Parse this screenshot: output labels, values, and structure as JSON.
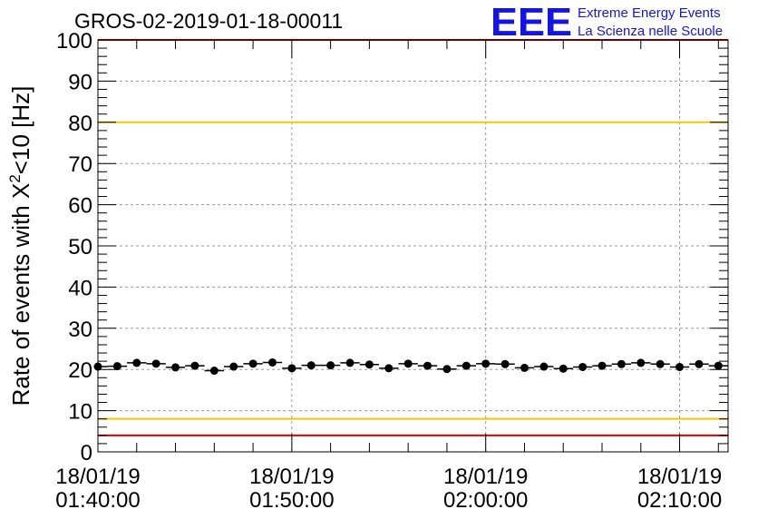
{
  "chart_data": {
    "type": "scatter",
    "title": "GROS-02-2019-01-18-00011",
    "ylabel_main": "Rate of events with X",
    "ylabel_sup": "2",
    "ylabel_tail": "<10 [Hz]",
    "ylim": [
      0,
      100
    ],
    "y_ticks": [
      "0",
      "10",
      "20",
      "30",
      "40",
      "50",
      "60",
      "70",
      "80",
      "90",
      "100"
    ],
    "x_tick_labels": [
      {
        "date": "18/01/19",
        "time": "01:40:00"
      },
      {
        "date": "18/01/19",
        "time": "01:50:00"
      },
      {
        "date": "18/01/19",
        "time": "02:00:00"
      },
      {
        "date": "18/01/19",
        "time": "02:10:00"
      }
    ],
    "grid": true,
    "x_start": "01:40:00",
    "x_end": "02:12:30",
    "points": [
      {
        "t": "01:40:00",
        "y": 20.7
      },
      {
        "t": "01:41:00",
        "y": 20.8
      },
      {
        "t": "01:42:00",
        "y": 21.6
      },
      {
        "t": "01:43:00",
        "y": 21.4
      },
      {
        "t": "01:44:00",
        "y": 20.5
      },
      {
        "t": "01:45:00",
        "y": 20.9
      },
      {
        "t": "01:46:00",
        "y": 19.7
      },
      {
        "t": "01:47:00",
        "y": 20.7
      },
      {
        "t": "01:48:00",
        "y": 21.4
      },
      {
        "t": "01:49:00",
        "y": 21.7
      },
      {
        "t": "01:50:00",
        "y": 20.3
      },
      {
        "t": "01:51:00",
        "y": 21.0
      },
      {
        "t": "01:52:00",
        "y": 21.0
      },
      {
        "t": "01:53:00",
        "y": 21.6
      },
      {
        "t": "01:54:00",
        "y": 21.2
      },
      {
        "t": "01:55:00",
        "y": 20.3
      },
      {
        "t": "01:56:00",
        "y": 21.4
      },
      {
        "t": "01:57:00",
        "y": 20.9
      },
      {
        "t": "01:58:00",
        "y": 20.1
      },
      {
        "t": "01:59:00",
        "y": 20.9
      },
      {
        "t": "02:00:00",
        "y": 21.4
      },
      {
        "t": "02:01:00",
        "y": 21.3
      },
      {
        "t": "02:02:00",
        "y": 20.4
      },
      {
        "t": "02:03:00",
        "y": 20.7
      },
      {
        "t": "02:04:00",
        "y": 20.2
      },
      {
        "t": "02:05:00",
        "y": 20.6
      },
      {
        "t": "02:06:00",
        "y": 20.9
      },
      {
        "t": "02:07:00",
        "y": 21.3
      },
      {
        "t": "02:08:00",
        "y": 21.6
      },
      {
        "t": "02:09:00",
        "y": 21.3
      },
      {
        "t": "02:10:00",
        "y": 20.6
      },
      {
        "t": "02:11:00",
        "y": 21.3
      },
      {
        "t": "02:12:00",
        "y": 20.9
      }
    ],
    "reference_lines": [
      {
        "y": 100,
        "color": "#e00000"
      },
      {
        "y": 80,
        "color": "#f0c800"
      },
      {
        "y": 8,
        "color": "#f0c800"
      },
      {
        "y": 4,
        "color": "#e00000"
      }
    ]
  },
  "logo": {
    "mark": "EEE",
    "line1": "Extreme Energy Events",
    "line2": "La Scienza nelle Scuole",
    "color": "#1414e6"
  },
  "colors": {
    "marker": "#000000",
    "grid": "#9a9a9a",
    "axis": "#000000"
  }
}
